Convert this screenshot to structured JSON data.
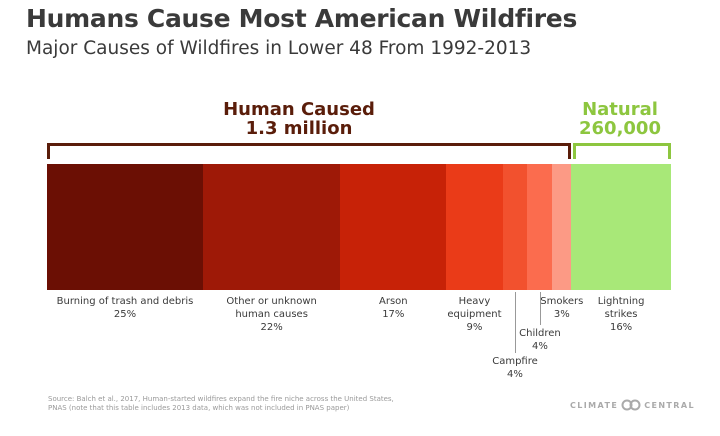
{
  "header": {
    "title": "Humans Cause Most American Wildfires",
    "subtitle": "Major Causes of Wildfires in Lower 48 From 1992-2013"
  },
  "groups": {
    "human": {
      "label": "Human Caused",
      "total": "1.3 million",
      "color": "#5a1d0a"
    },
    "natural": {
      "label": "Natural",
      "total": "260,000",
      "color": "#8dc63f"
    }
  },
  "chart_data": {
    "type": "bar",
    "orientation": "horizontal-stacked",
    "unit": "percent of wildfires",
    "categories": [
      "Burning of trash and debris",
      "Other or unknown human causes",
      "Arson",
      "Heavy equipment",
      "Campfire",
      "Children",
      "Smokers",
      "Lightning strikes"
    ],
    "values": [
      25,
      22,
      17,
      9,
      4,
      4,
      3,
      16
    ],
    "value_labels": [
      "25%",
      "22%",
      "17%",
      "9%",
      "4%",
      "4%",
      "3%",
      "16%"
    ],
    "label_lines": [
      [
        "Burning of trash and debris"
      ],
      [
        "Other or unknown",
        "human causes"
      ],
      [
        "Arson"
      ],
      [
        "Heavy",
        "equipment"
      ],
      [
        "Campfire"
      ],
      [
        "Children"
      ],
      [
        "Smokers"
      ],
      [
        "Lightning",
        "strikes"
      ]
    ],
    "groups": [
      "human",
      "human",
      "human",
      "human",
      "human",
      "human",
      "human",
      "natural"
    ],
    "colors": [
      "#6b0f04",
      "#9e1907",
      "#c72207",
      "#ea3b18",
      "#f2512e",
      "#fb6c4e",
      "#fc9a85",
      "#a8e878"
    ]
  },
  "footer": {
    "source": "Source: Balch et al., 2017, Human-started wildfires expand the fire niche across the United States, PNAS (note that this table includes 2013 data, which was not included in PNAS paper)",
    "brand_left": "CLIMATE",
    "brand_right": "CENTRAL"
  }
}
